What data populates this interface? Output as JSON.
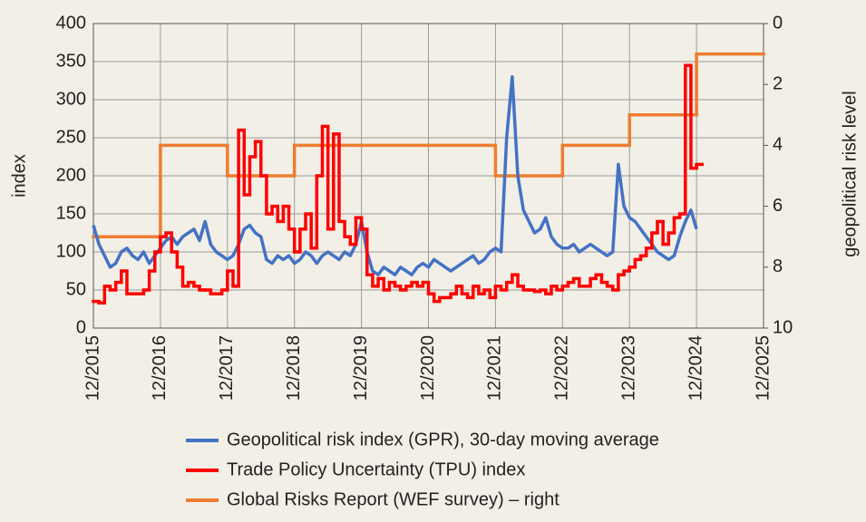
{
  "chart_data": {
    "type": "line",
    "x": [
      "12/2015",
      "01/2016",
      "02/2016",
      "03/2016",
      "04/2016",
      "05/2016",
      "06/2016",
      "07/2016",
      "08/2016",
      "09/2016",
      "10/2016",
      "11/2016",
      "12/2016",
      "01/2017",
      "02/2017",
      "03/2017",
      "04/2017",
      "05/2017",
      "06/2017",
      "07/2017",
      "08/2017",
      "09/2017",
      "10/2017",
      "11/2017",
      "12/2017",
      "01/2018",
      "02/2018",
      "03/2018",
      "04/2018",
      "05/2018",
      "06/2018",
      "07/2018",
      "08/2018",
      "09/2018",
      "10/2018",
      "11/2018",
      "12/2018",
      "01/2019",
      "02/2019",
      "03/2019",
      "04/2019",
      "05/2019",
      "06/2019",
      "07/2019",
      "08/2019",
      "09/2019",
      "10/2019",
      "11/2019",
      "12/2019",
      "01/2020",
      "02/2020",
      "03/2020",
      "04/2020",
      "05/2020",
      "06/2020",
      "07/2020",
      "08/2020",
      "09/2020",
      "10/2020",
      "11/2020",
      "12/2020",
      "01/2021",
      "02/2021",
      "03/2021",
      "04/2021",
      "05/2021",
      "06/2021",
      "07/2021",
      "08/2021",
      "09/2021",
      "10/2021",
      "11/2021",
      "12/2021",
      "01/2022",
      "02/2022",
      "03/2022",
      "04/2022",
      "05/2022",
      "06/2022",
      "07/2022",
      "08/2022",
      "09/2022",
      "10/2022",
      "11/2022",
      "12/2022",
      "01/2023",
      "02/2023",
      "03/2023",
      "04/2023",
      "05/2023",
      "06/2023",
      "07/2023",
      "08/2023",
      "09/2023",
      "10/2023",
      "11/2023",
      "12/2023",
      "01/2024",
      "02/2024",
      "03/2024",
      "04/2024",
      "05/2024",
      "06/2024",
      "07/2024",
      "08/2024",
      "09/2024",
      "10/2024",
      "11/2024",
      "12/2024"
    ],
    "series": [
      {
        "name": "Geopolitical risk index (GPR), 30-day moving average",
        "color": "#4472c4",
        "axis": "y",
        "values": [
          135,
          110,
          95,
          80,
          85,
          100,
          105,
          95,
          90,
          100,
          85,
          95,
          105,
          115,
          120,
          110,
          120,
          125,
          130,
          115,
          140,
          110,
          100,
          95,
          90,
          95,
          110,
          130,
          135,
          125,
          120,
          90,
          85,
          95,
          90,
          95,
          85,
          90,
          100,
          95,
          85,
          95,
          100,
          95,
          90,
          100,
          95,
          110,
          140,
          100,
          75,
          70,
          80,
          75,
          70,
          80,
          75,
          70,
          80,
          85,
          80,
          90,
          85,
          80,
          75,
          80,
          85,
          90,
          95,
          85,
          90,
          100,
          105,
          100,
          250,
          330,
          200,
          155,
          140,
          125,
          130,
          145,
          120,
          110,
          105,
          105,
          110,
          100,
          105,
          110,
          105,
          100,
          95,
          100,
          215,
          160,
          145,
          140,
          130,
          120,
          110,
          100,
          95,
          90,
          95,
          120,
          140,
          155,
          130
        ]
      },
      {
        "name": "Trade Policy Uncertainty (TPU) index",
        "color": "#ff0000",
        "axis": "y",
        "step": true,
        "values": [
          35,
          33,
          55,
          50,
          60,
          75,
          45,
          45,
          45,
          50,
          75,
          100,
          120,
          125,
          100,
          80,
          55,
          60,
          55,
          50,
          50,
          45,
          45,
          50,
          75,
          55,
          260,
          175,
          225,
          245,
          200,
          150,
          160,
          140,
          160,
          130,
          100,
          130,
          150,
          105,
          200,
          265,
          130,
          255,
          140,
          120,
          110,
          145,
          130,
          70,
          55,
          65,
          50,
          60,
          55,
          50,
          55,
          60,
          55,
          60,
          45,
          35,
          40,
          40,
          45,
          55,
          45,
          40,
          55,
          45,
          50,
          40,
          55,
          50,
          60,
          70,
          55,
          50,
          50,
          48,
          50,
          45,
          55,
          50,
          55,
          60,
          65,
          55,
          55,
          65,
          70,
          60,
          55,
          50,
          70,
          75,
          80,
          90,
          95,
          105,
          125,
          140,
          110,
          125,
          145,
          150,
          345,
          210,
          215
        ]
      },
      {
        "name": "Global Risks Report (WEF survey) – right",
        "color": "#ed7d31",
        "axis": "y2",
        "step": true,
        "x": [
          "12/2015",
          "12/2016",
          "12/2017",
          "12/2018",
          "12/2019",
          "12/2020",
          "12/2021",
          "12/2022",
          "12/2023",
          "12/2024"
        ],
        "values": [
          7,
          4,
          5,
          4,
          4,
          4,
          5,
          4,
          3,
          1
        ]
      }
    ],
    "xlim": [
      "12/2015",
      "12/2025"
    ],
    "xticks": [
      "12/2015",
      "12/2016",
      "12/2017",
      "12/2018",
      "12/2019",
      "12/2020",
      "12/2021",
      "12/2022",
      "12/2023",
      "12/2024",
      "12/2025"
    ],
    "ylim": [
      0,
      400
    ],
    "yticks": [
      0,
      50,
      100,
      150,
      200,
      250,
      300,
      350,
      400
    ],
    "y2lim": [
      10,
      0
    ],
    "y2ticks": [
      0,
      2,
      4,
      6,
      8,
      10
    ],
    "ylabel": "index",
    "y2label": "geopolitical risk level",
    "grid": true
  }
}
